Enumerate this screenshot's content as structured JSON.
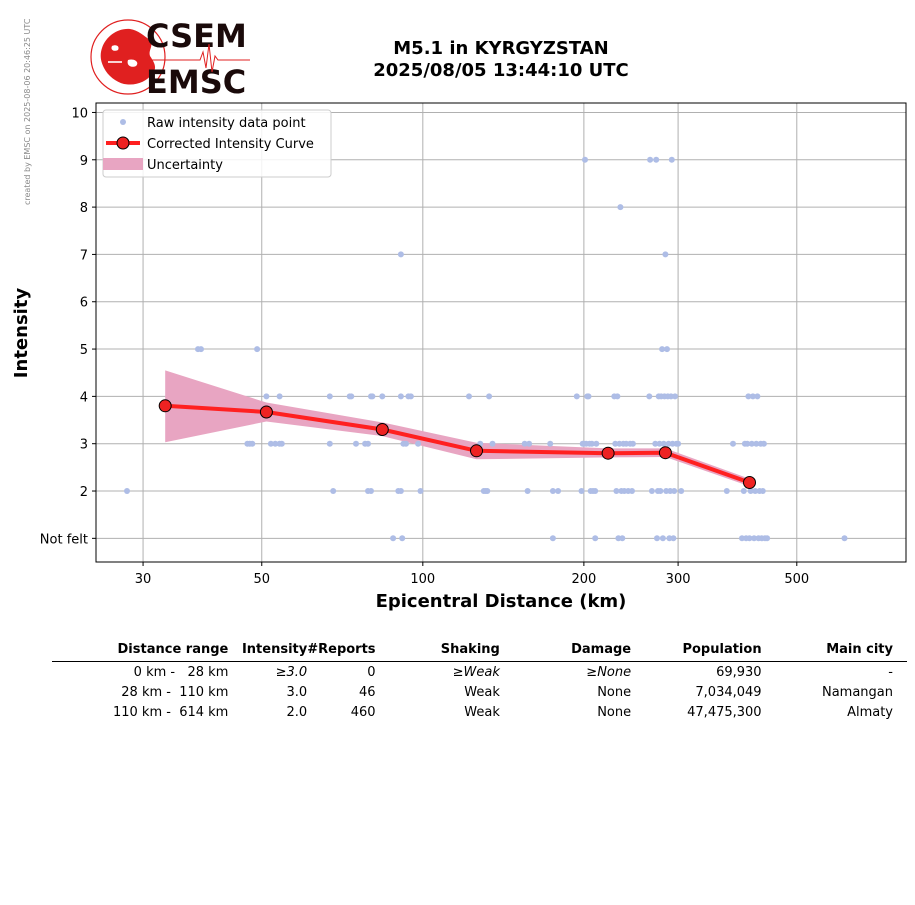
{
  "header": {
    "logo_text_top": "CSEM",
    "logo_text_bottom": "EMSC",
    "credit": "created by EMSC on 2025-08-06 20:46:25 UTC",
    "title_line1": "M5.1 in KYRGYZSTAN",
    "title_line2": "2025/08/05 13:44:10 UTC"
  },
  "colors": {
    "raw_points": "#aebde6",
    "curve": "#ff2020",
    "marker_fill": "#ee2222",
    "uncertainty": "#e8a5c2",
    "grid": "#b0b0b0",
    "logo_red": "#e02020"
  },
  "chart_data": {
    "type": "scatter",
    "xlabel": "Epicentral Distance (km)",
    "ylabel": "Intensity",
    "x_scale": "log",
    "xlim": [
      24.5,
      800
    ],
    "ylim": [
      0.5,
      10.2
    ],
    "x_ticks": [
      30,
      50,
      100,
      200,
      300,
      500
    ],
    "y_ticks": [
      1,
      2,
      3,
      4,
      5,
      6,
      7,
      8,
      9,
      10
    ],
    "y_tick_labels": [
      "Not felt",
      "2",
      "3",
      "4",
      "5",
      "6",
      "7",
      "8",
      "9",
      "10"
    ],
    "grid": true,
    "legend": {
      "placement": "top-left",
      "entries": [
        "Raw intensity data point",
        "Corrected Intensity Curve",
        "Uncertainty"
      ]
    },
    "curve": {
      "name": "Corrected Intensity Curve",
      "x": [
        33,
        51,
        84,
        126,
        222,
        284,
        408
      ],
      "y": [
        3.8,
        3.67,
        3.3,
        2.85,
        2.8,
        2.81,
        2.18
      ]
    },
    "uncertainty": {
      "name": "Uncertainty",
      "x": [
        33,
        51,
        84,
        126,
        222,
        284,
        408
      ],
      "upper": [
        4.55,
        3.87,
        3.45,
        3.02,
        2.9,
        2.9,
        2.26
      ],
      "lower": [
        3.03,
        3.47,
        3.16,
        2.67,
        2.71,
        2.72,
        2.1
      ]
    },
    "raw_points": {
      "name": "Raw intensity data point",
      "points": [
        [
          28,
          2
        ],
        [
          38,
          5
        ],
        [
          38.5,
          5
        ],
        [
          49,
          5
        ],
        [
          47,
          3
        ],
        [
          47.5,
          3
        ],
        [
          48,
          3
        ],
        [
          51,
          4
        ],
        [
          54,
          4
        ],
        [
          52,
          3
        ],
        [
          53,
          3
        ],
        [
          54,
          3
        ],
        [
          54.5,
          3
        ],
        [
          67,
          4
        ],
        [
          67,
          3
        ],
        [
          68,
          2
        ],
        [
          73,
          4
        ],
        [
          73.5,
          4
        ],
        [
          75,
          3
        ],
        [
          78,
          3
        ],
        [
          79,
          3
        ],
        [
          79,
          2
        ],
        [
          80,
          2
        ],
        [
          80,
          4
        ],
        [
          80.5,
          4
        ],
        [
          84,
          4
        ],
        [
          88,
          1
        ],
        [
          90,
          2
        ],
        [
          91,
          2
        ],
        [
          91,
          4
        ],
        [
          91,
          7
        ],
        [
          92,
          3
        ],
        [
          93,
          3
        ],
        [
          94,
          4
        ],
        [
          95,
          4
        ],
        [
          91.5,
          1
        ],
        [
          98,
          3
        ],
        [
          99,
          2
        ],
        [
          122,
          4
        ],
        [
          128,
          3
        ],
        [
          130,
          2
        ],
        [
          131,
          2
        ],
        [
          132,
          2
        ],
        [
          133,
          4
        ],
        [
          135,
          3
        ],
        [
          155,
          3
        ],
        [
          157,
          2
        ],
        [
          158,
          3
        ],
        [
          173,
          3
        ],
        [
          175,
          1
        ],
        [
          175,
          2
        ],
        [
          179,
          2
        ],
        [
          194,
          4
        ],
        [
          198,
          2
        ],
        [
          199,
          3
        ],
        [
          200,
          3
        ],
        [
          201,
          9
        ],
        [
          202,
          3
        ],
        [
          203,
          4
        ],
        [
          204,
          4
        ],
        [
          205,
          3
        ],
        [
          206,
          2
        ],
        [
          207,
          3
        ],
        [
          208,
          2
        ],
        [
          210,
          2
        ],
        [
          211,
          3
        ],
        [
          210,
          1
        ],
        [
          228,
          4
        ],
        [
          229,
          3
        ],
        [
          230,
          2
        ],
        [
          231,
          4
        ],
        [
          232,
          1
        ],
        [
          233,
          3
        ],
        [
          234,
          8
        ],
        [
          235,
          2
        ],
        [
          236,
          1
        ],
        [
          237,
          3
        ],
        [
          238,
          2
        ],
        [
          240,
          3
        ],
        [
          242,
          2
        ],
        [
          244,
          3
        ],
        [
          246,
          2
        ],
        [
          247,
          3
        ],
        [
          265,
          4
        ],
        [
          266,
          9
        ],
        [
          268,
          2
        ],
        [
          272,
          3
        ],
        [
          273,
          9
        ],
        [
          274,
          1
        ],
        [
          275,
          2
        ],
        [
          276,
          4
        ],
        [
          277,
          3
        ],
        [
          278,
          2
        ],
        [
          279,
          4
        ],
        [
          280,
          5
        ],
        [
          281,
          1
        ],
        [
          282,
          3
        ],
        [
          283,
          4
        ],
        [
          284,
          7
        ],
        [
          285,
          2
        ],
        [
          286,
          5
        ],
        [
          287,
          4
        ],
        [
          288,
          3
        ],
        [
          289,
          1
        ],
        [
          290,
          2
        ],
        [
          291,
          4
        ],
        [
          292,
          9
        ],
        [
          293,
          3
        ],
        [
          294,
          1
        ],
        [
          295,
          2
        ],
        [
          296,
          4
        ],
        [
          298,
          3
        ],
        [
          300,
          3
        ],
        [
          304,
          2
        ],
        [
          370,
          2
        ],
        [
          380,
          3
        ],
        [
          395,
          1
        ],
        [
          398,
          2
        ],
        [
          400,
          3
        ],
        [
          402,
          1
        ],
        [
          404,
          3
        ],
        [
          406,
          4
        ],
        [
          408,
          1
        ],
        [
          410,
          2
        ],
        [
          412,
          3
        ],
        [
          414,
          4
        ],
        [
          416,
          1
        ],
        [
          418,
          2
        ],
        [
          420,
          3
        ],
        [
          422,
          4
        ],
        [
          424,
          1
        ],
        [
          426,
          2
        ],
        [
          428,
          3
        ],
        [
          430,
          1
        ],
        [
          432,
          2
        ],
        [
          434,
          3
        ],
        [
          436,
          1
        ],
        [
          440,
          1
        ],
        [
          614,
          1
        ]
      ]
    }
  },
  "table": {
    "headers": [
      "Distance range",
      "Intensity",
      "#Reports",
      "Shaking",
      "Damage",
      "Population",
      "Main city"
    ],
    "rows": [
      {
        "range": "0 km -   28 km",
        "intensity": "≥3.0",
        "reports": "0",
        "shaking": "≥Weak",
        "damage": "≥None",
        "population": "69,930",
        "city": "-"
      },
      {
        "range": "28 km -  110 km",
        "intensity": "3.0",
        "reports": "46",
        "shaking": "Weak",
        "damage": "None",
        "population": "7,034,049",
        "city": "Namangan"
      },
      {
        "range": "110 km -  614 km",
        "intensity": "2.0",
        "reports": "460",
        "shaking": "Weak",
        "damage": "None",
        "population": "47,475,300",
        "city": "Almaty"
      }
    ]
  }
}
